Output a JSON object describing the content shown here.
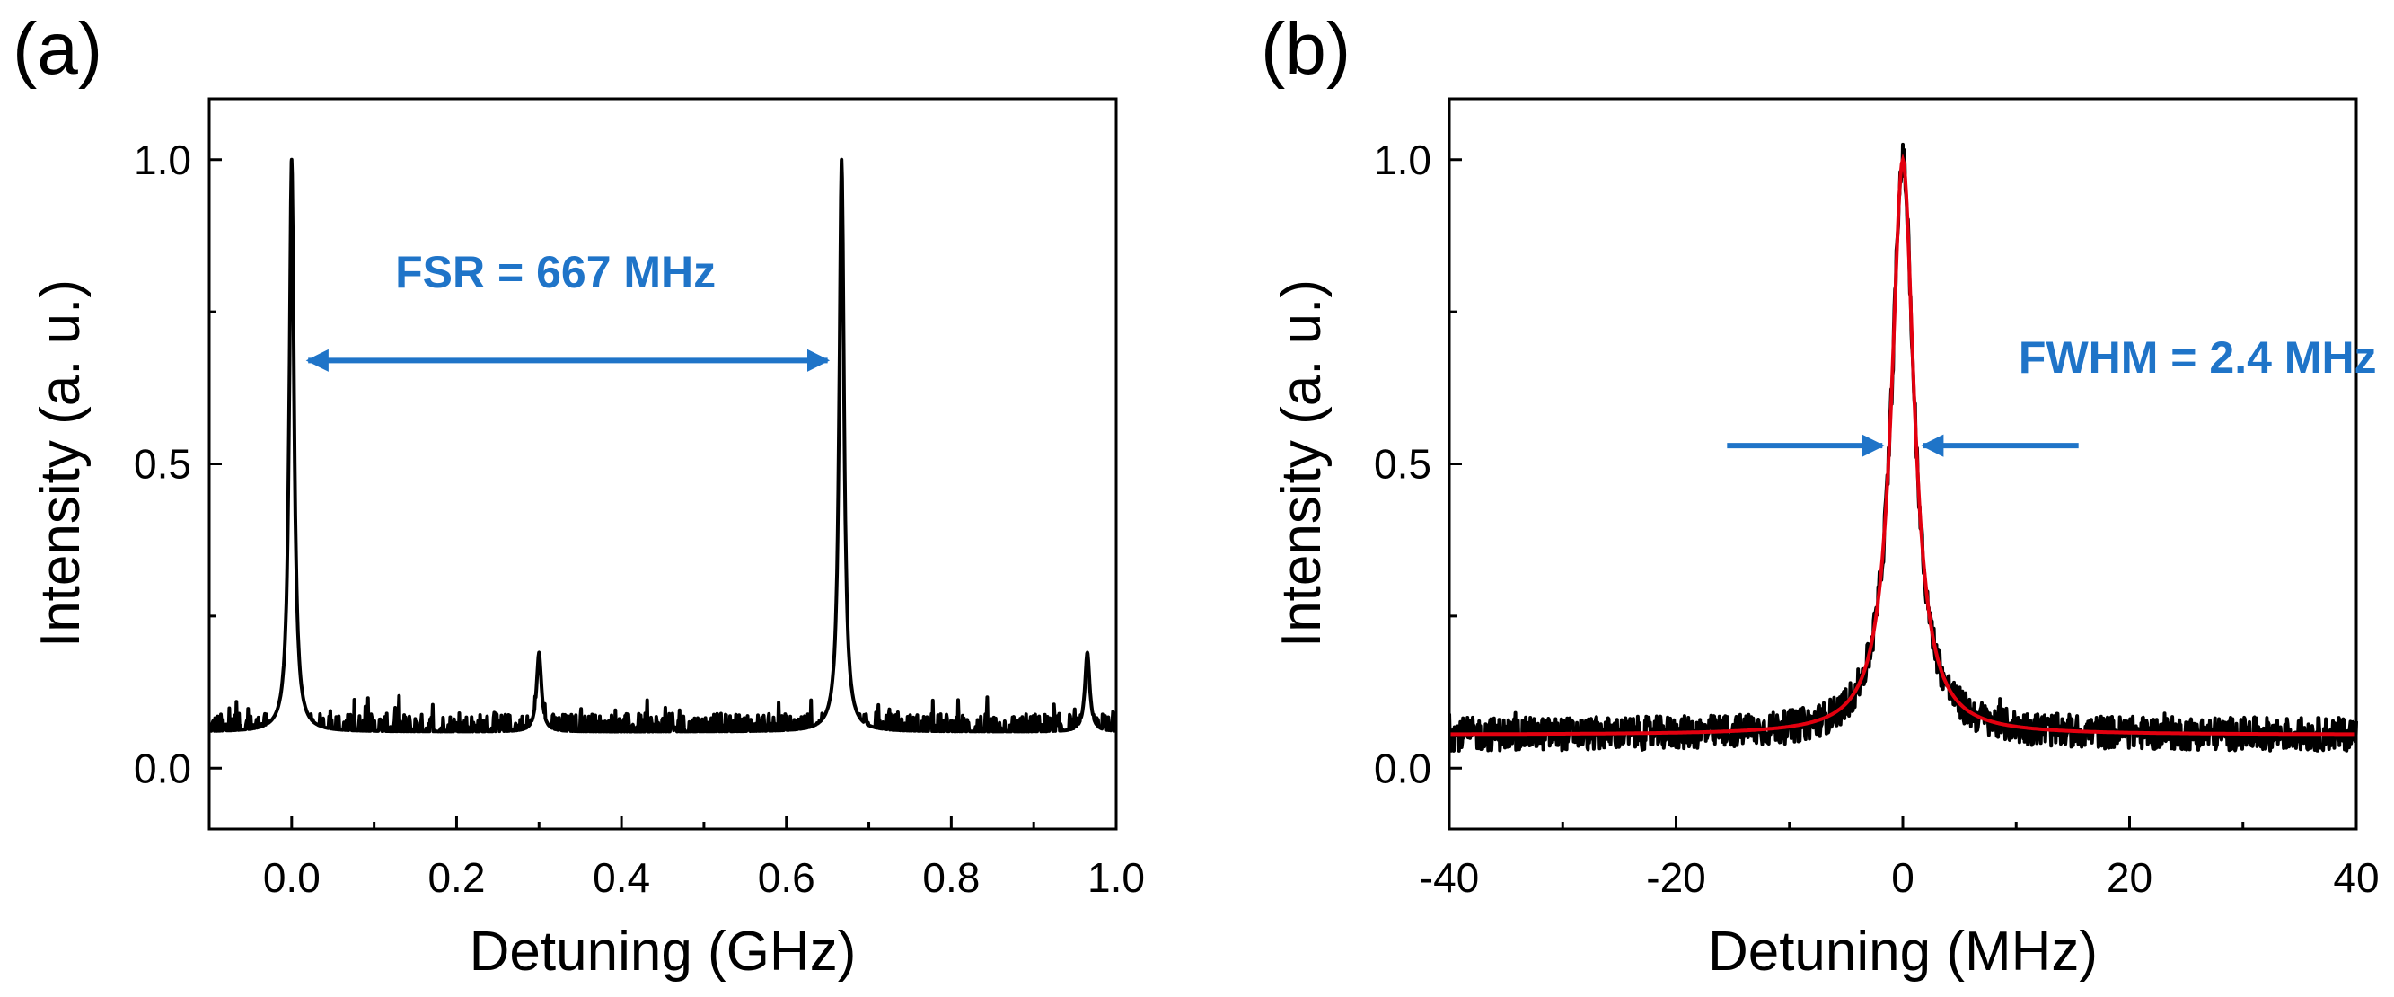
{
  "chart_data": [
    {
      "panel": "(a)",
      "type": "line",
      "xlabel": "Detuning (GHz)",
      "ylabel": "Intensity (a. u.)",
      "xlim": [
        -0.1,
        1.0
      ],
      "ylim": [
        -0.1,
        1.1
      ],
      "xticks": [
        0.0,
        0.2,
        0.4,
        0.6,
        0.8,
        1.0
      ],
      "xtick_labels": [
        "0.0",
        "0.2",
        "0.4",
        "0.6",
        "0.8",
        "1.0"
      ],
      "yticks": [
        0.0,
        0.5,
        1.0
      ],
      "ytick_labels": [
        "0.0",
        "0.5",
        "1.0"
      ],
      "grid": false,
      "series": [
        {
          "name": "Transmission spectrum",
          "color": "#000000",
          "baseline_range": [
            0.03,
            0.09
          ],
          "peaks": [
            {
              "x": 0.0,
              "y": 1.0
            },
            {
              "x": 0.3,
              "y": 0.19
            },
            {
              "x": 0.667,
              "y": 1.0
            },
            {
              "x": 0.965,
              "y": 0.19
            }
          ]
        }
      ],
      "annotations": [
        {
          "text": "FSR = 667 MHz",
          "color": "#1f74c8",
          "arrow": "double",
          "arrow_x": [
            0.02,
            0.65
          ],
          "arrow_y": 0.67,
          "text_x": 0.32,
          "text_y": 0.79
        }
      ]
    },
    {
      "panel": "(b)",
      "type": "line",
      "xlabel": "Detuning (MHz)",
      "ylabel": "Intensity (a. u.)",
      "xlim": [
        -40,
        40
      ],
      "ylim": [
        -0.1,
        1.1
      ],
      "xticks": [
        -40,
        -20,
        0,
        20,
        40
      ],
      "xtick_labels": [
        "-40",
        "-20",
        "0",
        "20",
        "40"
      ],
      "yticks": [
        0.0,
        0.5,
        1.0
      ],
      "ytick_labels": [
        "0.0",
        "0.5",
        "1.0"
      ],
      "grid": false,
      "series": [
        {
          "name": "Measured",
          "color": "#000000",
          "baseline_range": [
            0.03,
            0.09
          ],
          "peak": {
            "x": 0,
            "y": 1.0
          }
        },
        {
          "name": "Lorentzian fit",
          "color": "#e3000f",
          "center": 0,
          "fwhm": 2.4,
          "offset": 0.055,
          "amplitude": 0.945
        }
      ],
      "annotations": [
        {
          "text": "FWHM = 2.4 MHz",
          "color": "#1f74c8",
          "arrows": [
            {
              "from": -15.5,
              "to": -1.8,
              "y": 0.53
            },
            {
              "from": 15.5,
              "to": 1.8,
              "y": 0.53
            }
          ],
          "text_x": 26,
          "text_y": 0.65
        }
      ]
    }
  ]
}
